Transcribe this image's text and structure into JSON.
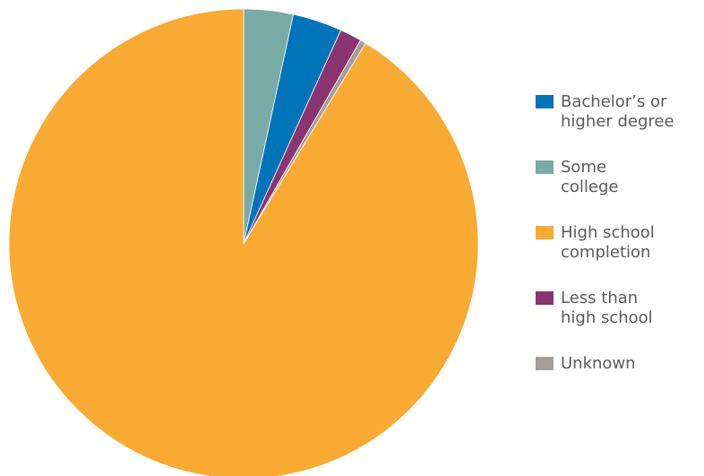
{
  "chart_data": {
    "type": "pie",
    "title": "",
    "legend_position": "right",
    "series": [
      {
        "name": "Some college",
        "value": 3.4,
        "color": "#7aaaa5"
      },
      {
        "name": "Bachelor’s or higher degree",
        "value": 3.4,
        "color": "#0074b9"
      },
      {
        "name": "Less than high school",
        "value": 1.5,
        "color": "#8a3471"
      },
      {
        "name": "Unknown",
        "value": 0.4,
        "color": "#a39d9b"
      },
      {
        "name": "High school completion",
        "value": 91.3,
        "color": "#f8aa33"
      }
    ],
    "legend": [
      {
        "label": "Bachelor’s or\nhigher degree",
        "color": "#0074b9"
      },
      {
        "label": "Some\ncollege",
        "color": "#7aaaa5"
      },
      {
        "label": "High school\ncompletion",
        "color": "#f8aa33"
      },
      {
        "label": "Less than\nhigh school",
        "color": "#8a3471"
      },
      {
        "label": "Unknown",
        "color": "#a39d9b"
      }
    ]
  }
}
